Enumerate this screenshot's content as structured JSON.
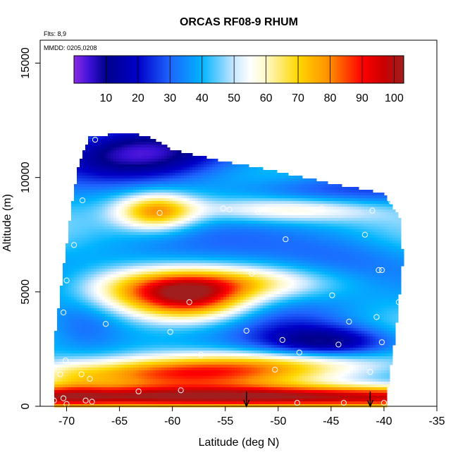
{
  "chart_data": {
    "type": "heatmap",
    "title": "ORCAS RF08-9 RHUM",
    "flights_note": "Flts: 8,9",
    "dates_note": "MMDD: 0205,0208",
    "xlabel": "Latitude (deg N)",
    "ylabel": "Altitude (m)",
    "xlim": [
      -72.5,
      -35
    ],
    "ylim": [
      0,
      16000
    ],
    "x_ticks": [
      -70,
      -65,
      -60,
      -55,
      -50,
      -45,
      -40,
      -35
    ],
    "x_tick_labels": [
      "-70",
      "-65",
      "-60",
      "-55",
      "-50",
      "-45",
      "-40",
      "-35"
    ],
    "y_ticks": [
      0,
      5000,
      10000,
      15000
    ],
    "y_tick_labels": [
      "0",
      "5000",
      "10000",
      "15000"
    ],
    "colorbar": {
      "vmin": 0,
      "vmax": 103,
      "ticks": [
        10,
        20,
        30,
        40,
        50,
        60,
        70,
        80,
        90,
        100
      ],
      "tick_labels": [
        "10",
        "20",
        "30",
        "40",
        "50",
        "60",
        "70",
        "80",
        "90",
        "100"
      ],
      "stops": [
        {
          "v": 0,
          "color": "#8a2be2"
        },
        {
          "v": 5,
          "color": "#3b10d6"
        },
        {
          "v": 10,
          "color": "#00008b"
        },
        {
          "v": 20,
          "color": "#0000c8"
        },
        {
          "v": 30,
          "color": "#1e64ff"
        },
        {
          "v": 40,
          "color": "#00b4ff"
        },
        {
          "v": 50,
          "color": "#c8e6ff"
        },
        {
          "v": 55,
          "color": "#ffffff"
        },
        {
          "v": 60,
          "color": "#fff8c8"
        },
        {
          "v": 70,
          "color": "#ffd700"
        },
        {
          "v": 80,
          "color": "#ff8c00"
        },
        {
          "v": 90,
          "color": "#ff0000"
        },
        {
          "v": 97,
          "color": "#c80000"
        },
        {
          "v": 103,
          "color": "#a01e1e"
        }
      ]
    },
    "coverage_top": [
      [
        -71.1,
        3000
      ],
      [
        -70.6,
        5000
      ],
      [
        -70.0,
        7000
      ],
      [
        -69.5,
        8800
      ],
      [
        -68.8,
        10700
      ],
      [
        -67.8,
        11800
      ],
      [
        -64.0,
        11950
      ],
      [
        -62.0,
        11750
      ],
      [
        -60.0,
        11200
      ],
      [
        -55.0,
        10700
      ],
      [
        -50.0,
        10250
      ],
      [
        -45.0,
        9750
      ],
      [
        -40.0,
        9300
      ],
      [
        -38.5,
        8200
      ],
      [
        -38.2,
        6500
      ]
    ],
    "coverage_bottom_right": [
      [
        -38.2,
        6500
      ],
      [
        -38.8,
        3600
      ],
      [
        -39.5,
        1200
      ],
      [
        -39.8,
        0
      ]
    ],
    "field_features": [
      {
        "cx": -53,
        "cy": 400,
        "sx": 60,
        "sy": 350,
        "amp": 58
      },
      {
        "cx": -60,
        "cy": 1400,
        "sx": 9,
        "sy": 450,
        "amp": 38
      },
      {
        "cx": -69.5,
        "cy": 1000,
        "sx": 2.2,
        "sy": 700,
        "amp": 10
      },
      {
        "cx": -50,
        "cy": 1900,
        "sx": 8,
        "sy": 400,
        "amp": 20
      },
      {
        "cx": -58,
        "cy": 4700,
        "sx": 3.8,
        "sy": 700,
        "amp": 40
      },
      {
        "cx": -54,
        "cy": 5400,
        "sx": 6.5,
        "sy": 500,
        "amp": 22
      },
      {
        "cx": -63,
        "cy": 5000,
        "sx": 4.5,
        "sy": 700,
        "amp": 25
      },
      {
        "cx": -61.5,
        "cy": 8500,
        "sx": 2.6,
        "sy": 550,
        "amp": 38
      },
      {
        "cx": -49,
        "cy": 8600,
        "sx": 6,
        "sy": 380,
        "amp": 20
      },
      {
        "cx": -63,
        "cy": 11000,
        "sx": 6,
        "sy": 900,
        "amp": -38
      },
      {
        "cx": -45,
        "cy": 2800,
        "sx": 4.5,
        "sy": 500,
        "amp": -28
      },
      {
        "cx": -68.5,
        "cy": 3600,
        "sx": 3.2,
        "sy": 1000,
        "amp": -15
      },
      {
        "cx": -48.5,
        "cy": 3800,
        "sx": 4.5,
        "sy": 900,
        "amp": -12
      },
      {
        "cx": -45,
        "cy": 9400,
        "sx": 8,
        "sy": 500,
        "amp": -14
      },
      {
        "cx": -57,
        "cy": 6700,
        "sx": 9,
        "sy": 900,
        "amp": -8
      },
      {
        "cx": -44,
        "cy": 6500,
        "sx": 5,
        "sy": 900,
        "amp": -8
      }
    ],
    "field_base": 42,
    "samples": [
      {
        "lat": -71.2,
        "alt": 250
      },
      {
        "lat": -70.3,
        "alt": 350
      },
      {
        "lat": -70.0,
        "alt": 100
      },
      {
        "lat": -68.2,
        "alt": 250
      },
      {
        "lat": -67.6,
        "alt": 200
      },
      {
        "lat": -63.2,
        "alt": 650
      },
      {
        "lat": -59.2,
        "alt": 700
      },
      {
        "lat": -48.2,
        "alt": 150
      },
      {
        "lat": -43.8,
        "alt": 150
      },
      {
        "lat": -40.0,
        "alt": 150
      },
      {
        "lat": -70.6,
        "alt": 1400
      },
      {
        "lat": -68.6,
        "alt": 1400
      },
      {
        "lat": -67.8,
        "alt": 1200
      },
      {
        "lat": -50.3,
        "alt": 1600
      },
      {
        "lat": -41.3,
        "alt": 1500
      },
      {
        "lat": -70.1,
        "alt": 2000
      },
      {
        "lat": -57.3,
        "alt": 2250
      },
      {
        "lat": -48.0,
        "alt": 2350
      },
      {
        "lat": -49.6,
        "alt": 2900
      },
      {
        "lat": -44.3,
        "alt": 2700
      },
      {
        "lat": -40.2,
        "alt": 2800
      },
      {
        "lat": -60.2,
        "alt": 3250
      },
      {
        "lat": -66.3,
        "alt": 3600
      },
      {
        "lat": -53.0,
        "alt": 3300
      },
      {
        "lat": -43.3,
        "alt": 3700
      },
      {
        "lat": -70.3,
        "alt": 4100
      },
      {
        "lat": -40.7,
        "alt": 3900
      },
      {
        "lat": -58.4,
        "alt": 4550
      },
      {
        "lat": -44.9,
        "alt": 4850
      },
      {
        "lat": -38.6,
        "alt": 4550
      },
      {
        "lat": -70.0,
        "alt": 5500
      },
      {
        "lat": -52.5,
        "alt": 5800
      },
      {
        "lat": -40.5,
        "alt": 5950
      },
      {
        "lat": -40.2,
        "alt": 5950
      },
      {
        "lat": -69.3,
        "alt": 7050
      },
      {
        "lat": -49.3,
        "alt": 7300
      },
      {
        "lat": -41.8,
        "alt": 7500
      },
      {
        "lat": -38.1,
        "alt": 7650
      },
      {
        "lat": -61.2,
        "alt": 8450
      },
      {
        "lat": -55.2,
        "alt": 8650
      },
      {
        "lat": -54.6,
        "alt": 8600
      },
      {
        "lat": -51.9,
        "alt": 8500
      },
      {
        "lat": -45.9,
        "alt": 8650
      },
      {
        "lat": -41.1,
        "alt": 8550
      },
      {
        "lat": -39.3,
        "alt": 8950
      },
      {
        "lat": -68.5,
        "alt": 9000
      },
      {
        "lat": -67.3,
        "alt": 11650
      }
    ],
    "event_markers_lat": [
      -53.0,
      -41.3
    ]
  }
}
